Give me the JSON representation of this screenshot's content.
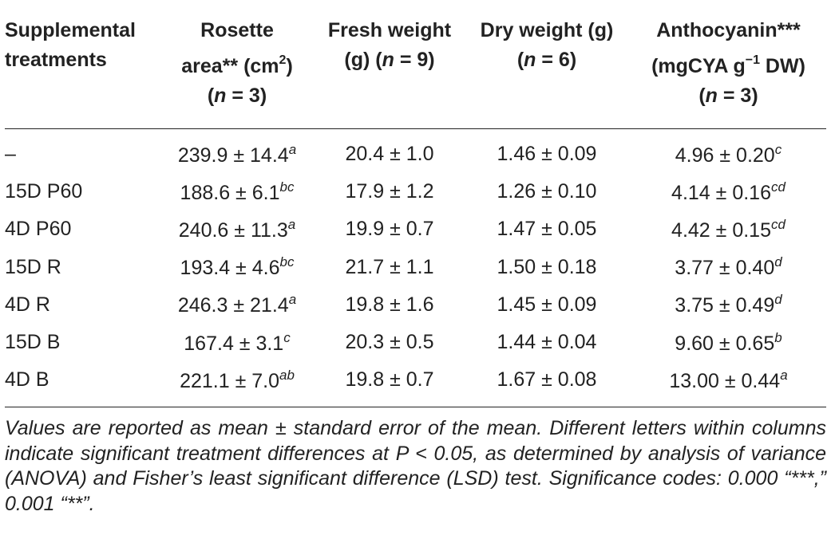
{
  "header": {
    "col1_line1": "Supplemental",
    "col1_line2": "treatments",
    "col2_line1": "Rosette",
    "col2_line2_pre": "area** (cm",
    "col2_line2_sup": "2",
    "col2_line2_post": ")",
    "col2_n_open": "(",
    "col2_n_italic": "n",
    "col2_n_rest": " = 3)",
    "col3_line1": "Fresh weight",
    "col3_line2_pre": "(g) (",
    "col3_n_italic": "n",
    "col3_line2_post": " = 9)",
    "col4_line1": "Dry weight (g)",
    "col4_n_open": "(",
    "col4_n_italic": "n",
    "col4_n_rest": " = 6)",
    "col5_line1": "Anthocyanin***",
    "col5_line2_pre": "(mgCYA g",
    "col5_line2_sup": "−1",
    "col5_line2_post": " DW)",
    "col5_n_open": "(",
    "col5_n_italic": "n",
    "col5_n_rest": " = 3)"
  },
  "rows": [
    {
      "treatment": "–",
      "rosette": "239.9 ± 14.4",
      "rosette_letter": "a",
      "fresh": "20.4 ± 1.0",
      "dry": "1.46 ± 0.09",
      "antho": "4.96 ± 0.20",
      "antho_letter": "c"
    },
    {
      "treatment": "15D P60",
      "rosette": "188.6 ± 6.1",
      "rosette_letter": "bc",
      "fresh": "17.9 ± 1.2",
      "dry": "1.26 ± 0.10",
      "antho": "4.14 ± 0.16",
      "antho_letter": "cd"
    },
    {
      "treatment": "4D P60",
      "rosette": "240.6 ± 11.3",
      "rosette_letter": "a",
      "fresh": "19.9 ± 0.7",
      "dry": "1.47 ± 0.05",
      "antho": "4.42 ± 0.15",
      "antho_letter": "cd"
    },
    {
      "treatment": "15D R",
      "rosette": "193.4 ± 4.6",
      "rosette_letter": "bc",
      "fresh": "21.7 ± 1.1",
      "dry": "1.50 ± 0.18",
      "antho": "3.77 ± 0.40",
      "antho_letter": "d"
    },
    {
      "treatment": "4D R",
      "rosette": "246.3 ± 21.4",
      "rosette_letter": "a",
      "fresh": "19.8 ± 1.6",
      "dry": "1.45 ± 0.09",
      "antho": "3.75 ± 0.49",
      "antho_letter": "d"
    },
    {
      "treatment": "15D B",
      "rosette": "167.4 ± 3.1",
      "rosette_letter": "c",
      "fresh": "20.3 ± 0.5",
      "dry": "1.44 ± 0.04",
      "antho": "9.60 ± 0.65",
      "antho_letter": "b"
    },
    {
      "treatment": "4D B",
      "rosette": "221.1 ± 7.0",
      "rosette_letter": "ab",
      "fresh": "19.8 ± 0.7",
      "dry": "1.67 ± 0.08",
      "antho": "13.00 ± 0.44",
      "antho_letter": "a"
    }
  ],
  "footnote": "Values are reported as mean ± standard error of the mean. Different letters within columns indicate significant treatment differences at P < 0.05, as determined by analysis of variance (ANOVA) and Fisher’s least significant difference (LSD) test. Significance codes: 0.000 “***,” 0.001 “**”."
}
